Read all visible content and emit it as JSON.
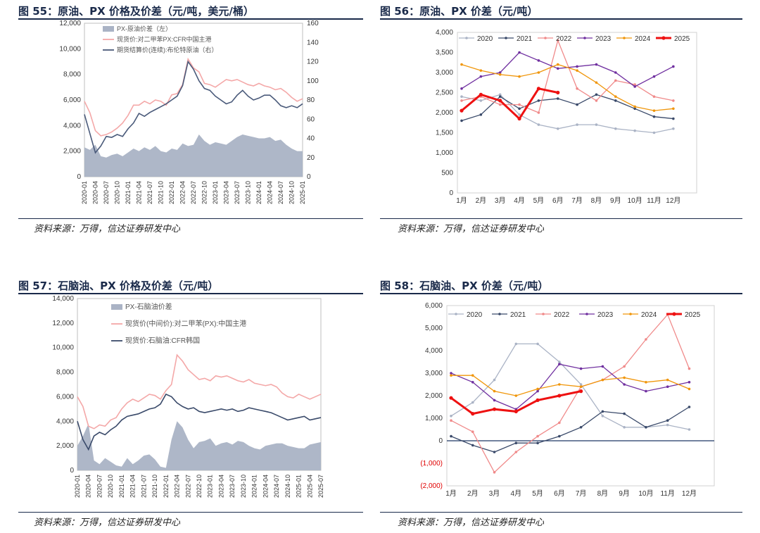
{
  "panels": [
    {
      "title": "图 55：原油、PX 价格及价差（元/吨，美元/桶）",
      "source": "资料来源：万得，信达证券研发中心"
    },
    {
      "title": "图 56：原油、PX 价差（元/吨）",
      "source": "资料来源：万得，信达证券研发中心"
    },
    {
      "title": "图 57：石脑油、PX 价格及价差（元/吨）",
      "source": "资料来源：万得，信达证券研发中心"
    },
    {
      "title": "图 58：石脑油、PX 价差（元/吨）",
      "source": "资料来源：万得，信达证券研发中心"
    }
  ],
  "chart_data": [
    {
      "type": "line",
      "title": "图 55：原油、PX 价格及价差（元/吨，美元/桶）",
      "ylim": [
        0,
        12000
      ],
      "y2lim": [
        0,
        160
      ],
      "yticks": [
        "0",
        "2,000",
        "4,000",
        "6,000",
        "8,000",
        "10,000",
        "12,000"
      ],
      "y2ticks": [
        "0",
        "20",
        "40",
        "60",
        "80",
        "100",
        "120",
        "140",
        "160"
      ],
      "xticks": [
        "2020-01",
        "2020-04",
        "2020-07",
        "2020-10",
        "2021-01",
        "2021-04",
        "2021-07",
        "2021-10",
        "2022-01",
        "2022-04",
        "2022-07",
        "2022-10",
        "2023-01",
        "2023-04",
        "2023-07",
        "2023-10",
        "2024-01",
        "2024-04",
        "2024-07",
        "2024-10",
        "2025-01"
      ],
      "legend_position": "top-left",
      "series": [
        {
          "name": "PX-原油价差（左）",
          "kind": "area",
          "color": "#aab3c5",
          "values": [
            2300,
            2100,
            2500,
            1600,
            1500,
            1700,
            1800,
            1600,
            1900,
            2200,
            2000,
            2300,
            2100,
            2400,
            2000,
            1900,
            2200,
            2100,
            2600,
            2400,
            2500,
            3300,
            2800,
            2500,
            2700,
            2600,
            2500,
            2800,
            3100,
            3300,
            3200,
            3100,
            3000,
            3000,
            3100,
            2800,
            2900,
            2500,
            2200,
            2000,
            2000
          ]
        },
        {
          "name": "现货价:对二甲苯PX:CFR中国主港",
          "color": "#f4a8a8",
          "values": [
            5900,
            5000,
            3600,
            3200,
            3300,
            3500,
            3800,
            4200,
            4800,
            5600,
            5600,
            5900,
            5700,
            6000,
            5900,
            5600,
            6400,
            6500,
            7200,
            9200,
            8500,
            8200,
            7300,
            7200,
            7000,
            7300,
            7600,
            7500,
            7600,
            7400,
            7200,
            7100,
            7300,
            7100,
            7000,
            6800,
            6900,
            6600,
            6200,
            5900,
            6100
          ]
        },
        {
          "name": "期货结算价(连续):布伦特原油（右）",
          "color": "#4a5a7a",
          "values": [
            65,
            45,
            25,
            32,
            42,
            41,
            44,
            42,
            50,
            56,
            66,
            63,
            67,
            70,
            73,
            76,
            80,
            84,
            95,
            120,
            112,
            100,
            92,
            90,
            84,
            80,
            76,
            78,
            85,
            90,
            84,
            80,
            82,
            85,
            85,
            80,
            74,
            72,
            74,
            72,
            76
          ]
        }
      ]
    },
    {
      "type": "line",
      "title": "图 56：原油、PX 价差（元/吨）",
      "ylim": [
        0,
        4000
      ],
      "yticks": [
        "0",
        "500",
        "1,000",
        "1,500",
        "2,000",
        "2,500",
        "3,000",
        "3,500",
        "4,000"
      ],
      "categories": [
        "1月",
        "2月",
        "3月",
        "4月",
        "5月",
        "6月",
        "7月",
        "8月",
        "9月",
        "10月",
        "11月",
        "12月"
      ],
      "legend_position": "top",
      "series": [
        {
          "name": "2020",
          "color": "#aab3c5",
          "values": [
            2400,
            2300,
            2450,
            1950,
            1700,
            1600,
            1700,
            1700,
            1600,
            1550,
            1500,
            1600
          ]
        },
        {
          "name": "2021",
          "color": "#3a4a6a",
          "values": [
            1800,
            1950,
            2400,
            2100,
            2300,
            2350,
            2200,
            2450,
            2300,
            2100,
            1900,
            1850
          ]
        },
        {
          "name": "2022",
          "color": "#f08a8a",
          "values": [
            2300,
            2400,
            2200,
            2200,
            2000,
            3800,
            2600,
            2300,
            2800,
            2700,
            2400,
            2300
          ]
        },
        {
          "name": "2023",
          "color": "#7030a0",
          "values": [
            2600,
            2900,
            3000,
            3500,
            3300,
            3100,
            3150,
            3200,
            3000,
            2650,
            2900,
            3150
          ]
        },
        {
          "name": "2024",
          "color": "#f0960a",
          "values": [
            3200,
            3050,
            2950,
            2900,
            3000,
            3200,
            3050,
            2750,
            2400,
            2150,
            2050,
            2100
          ]
        },
        {
          "name": "2025",
          "color": "#ee1111",
          "values": [
            2050,
            2450,
            2300,
            1850,
            2600,
            2500,
            null,
            null,
            null,
            null,
            null,
            null
          ]
        }
      ]
    },
    {
      "type": "line",
      "title": "图 57：石脑油、PX 价格及价差（元/吨）",
      "ylim": [
        0,
        14000
      ],
      "yticks": [
        "0",
        "2,000",
        "4,000",
        "6,000",
        "8,000",
        "10,000",
        "12,000",
        "14,000"
      ],
      "xticks": [
        "2020-01",
        "2020-04",
        "2020-07",
        "2020-10",
        "2021-01",
        "2021-04",
        "2021-07",
        "2021-10",
        "2022-01",
        "2022-04",
        "2022-07",
        "2022-10",
        "2023-01",
        "2023-04",
        "2023-07",
        "2023-10",
        "2024-01",
        "2024-04",
        "2024-07",
        "2024-10",
        "2025-01",
        "2025-04",
        "2025-07"
      ],
      "legend_position": "top-left",
      "series": [
        {
          "name": "PX-石脑油价差",
          "kind": "area",
          "color": "#aab3c5",
          "values": [
            2000,
            2800,
            3800,
            800,
            500,
            1000,
            700,
            400,
            300,
            1000,
            500,
            800,
            1200,
            1300,
            900,
            300,
            200,
            2500,
            4000,
            3500,
            2500,
            1800,
            2300,
            2400,
            2600,
            2000,
            2200,
            2300,
            2100,
            2400,
            2300,
            2000,
            1800,
            1700,
            2000,
            2100,
            2200,
            2200,
            2000,
            1900,
            1800,
            1800,
            2100,
            2200,
            2300
          ]
        },
        {
          "name": "现货价(中间价):对二甲苯(PX):中国主港",
          "color": "#f4a8a8",
          "values": [
            6000,
            5200,
            3600,
            3400,
            3700,
            3600,
            4100,
            4300,
            5000,
            5500,
            5800,
            5600,
            5900,
            6200,
            6100,
            5800,
            6500,
            7000,
            9400,
            8900,
            8200,
            7800,
            7400,
            7500,
            7300,
            7700,
            7600,
            7700,
            7500,
            7300,
            7200,
            7400,
            7100,
            7000,
            6900,
            7000,
            6800,
            6300,
            6000,
            5900,
            6200,
            6000,
            5800,
            6000,
            6200
          ]
        },
        {
          "name": "现货价:石脑油:CFR韩国",
          "color": "#3a4a6a",
          "values": [
            4000,
            2500,
            1700,
            2800,
            3100,
            2900,
            3300,
            3600,
            4100,
            4400,
            4500,
            4600,
            4800,
            5000,
            5100,
            5400,
            6200,
            6000,
            5500,
            5200,
            5000,
            5100,
            4800,
            4700,
            4800,
            4900,
            5000,
            4900,
            5000,
            4800,
            4900,
            5100,
            5000,
            4900,
            4800,
            4700,
            4500,
            4300,
            4100,
            4200,
            4300,
            4400,
            4100,
            4200,
            4300
          ]
        }
      ]
    },
    {
      "type": "line",
      "title": "图 58：石脑油、PX 价差（元/吨）",
      "ylim": [
        -2000,
        6000
      ],
      "yticks": [
        "(2,000)",
        "(1,000)",
        "0",
        "1,000",
        "2,000",
        "3,000",
        "4,000",
        "5,000",
        "6,000"
      ],
      "categories": [
        "1月",
        "2月",
        "3月",
        "4月",
        "5月",
        "6月",
        "7月",
        "8月",
        "9月",
        "10月",
        "11月",
        "12月"
      ],
      "legend_position": "top",
      "series": [
        {
          "name": "2020",
          "color": "#aab3c5",
          "values": [
            1100,
            1700,
            2700,
            4300,
            4300,
            3500,
            2500,
            1100,
            600,
            600,
            700,
            500
          ]
        },
        {
          "name": "2021",
          "color": "#3a4a6a",
          "values": [
            200,
            -200,
            -500,
            -100,
            -100,
            200,
            600,
            1300,
            1200,
            600,
            900,
            1500
          ]
        },
        {
          "name": "2022",
          "color": "#f08a8a",
          "values": [
            900,
            400,
            -1400,
            -500,
            200,
            800,
            2400,
            2700,
            3300,
            4500,
            5600,
            3200
          ]
        },
        {
          "name": "2023",
          "color": "#7030a0",
          "values": [
            3000,
            2600,
            1800,
            1400,
            2200,
            3400,
            3200,
            3300,
            2500,
            2200,
            2400,
            2600
          ]
        },
        {
          "name": "2024",
          "color": "#f0960a",
          "values": [
            2900,
            2900,
            2200,
            2000,
            2300,
            2500,
            2400,
            2700,
            2800,
            2600,
            2700,
            2300
          ]
        },
        {
          "name": "2025",
          "color": "#ee1111",
          "values": [
            1900,
            1200,
            1400,
            1300,
            1800,
            2000,
            2200,
            null,
            null,
            null,
            null,
            null
          ]
        }
      ]
    }
  ]
}
